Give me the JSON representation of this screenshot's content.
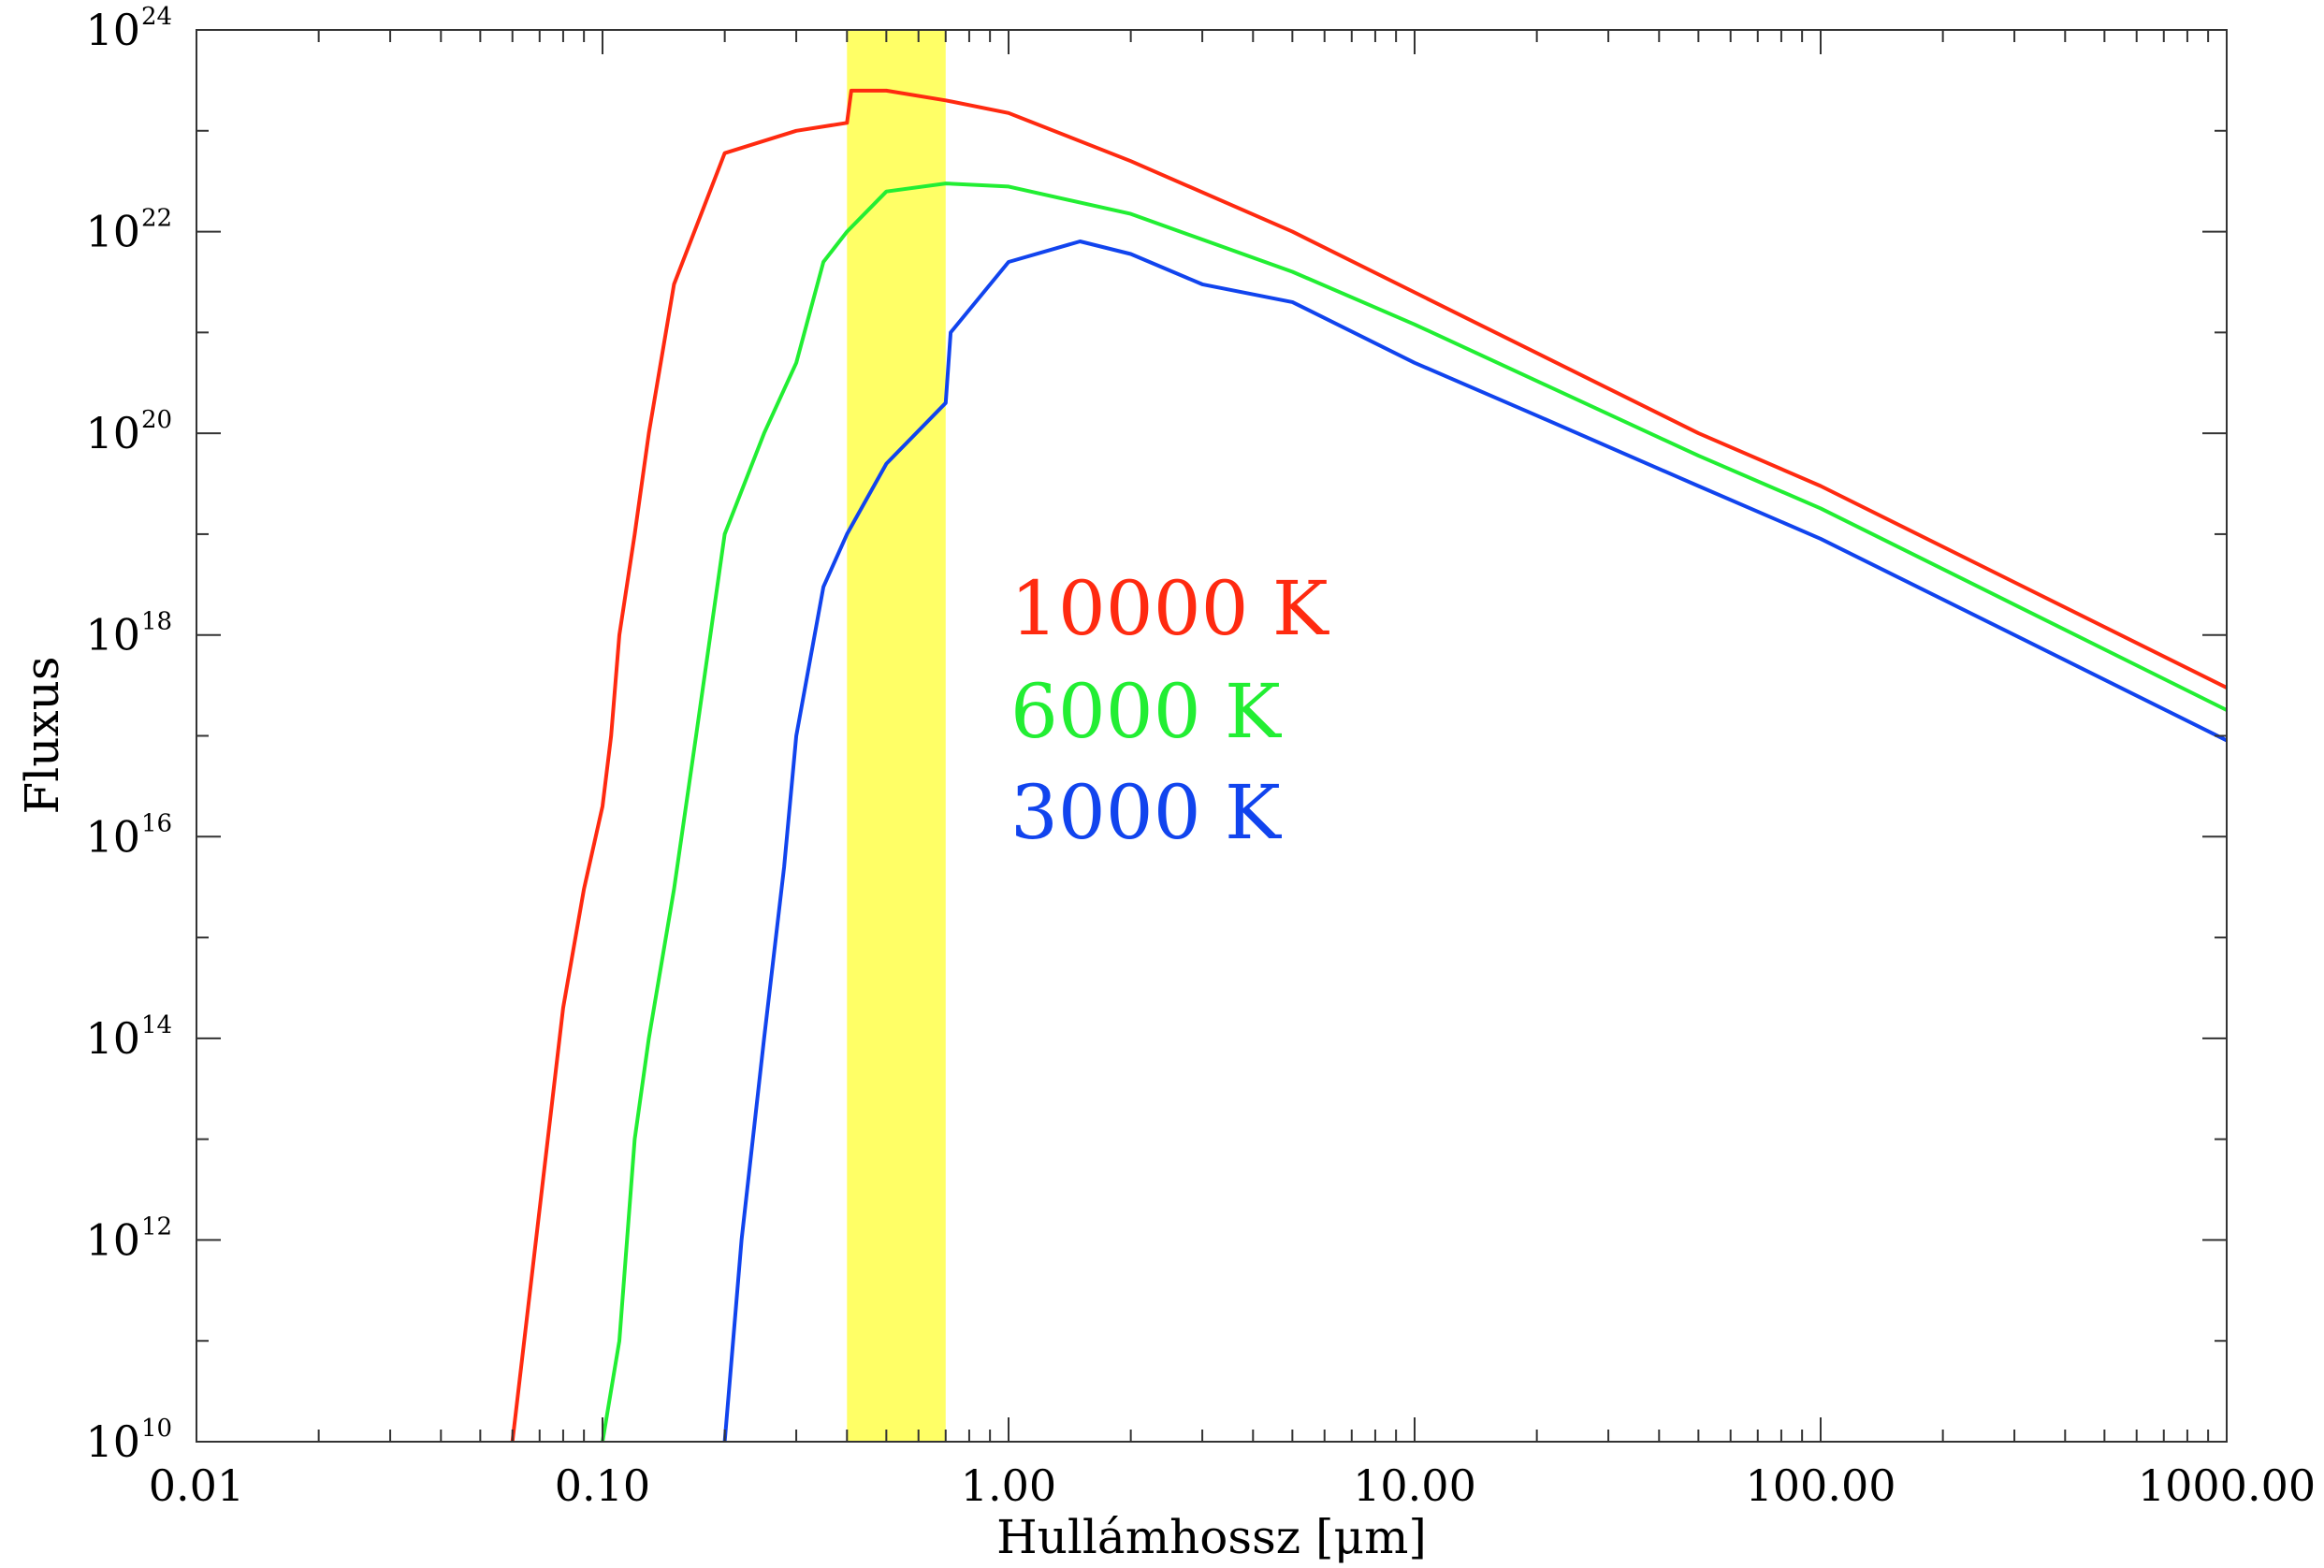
{
  "chart_data": {
    "type": "line",
    "title": "",
    "xlabel": "Hullámhossz [μm]",
    "ylabel": "Fluxus",
    "xscale": "log",
    "yscale": "log",
    "xlim": [
      0.01,
      1000
    ],
    "ylim": [
      10000000000.0,
      1e+24
    ],
    "x_tick_labels": [
      "0.01",
      "0.10",
      "1.00",
      "10.00",
      "100.00",
      "1000.00"
    ],
    "y_tick_labels": [
      {
        "base": "10",
        "exp": "10"
      },
      {
        "base": "10",
        "exp": "12"
      },
      {
        "base": "10",
        "exp": "14"
      },
      {
        "base": "10",
        "exp": "16"
      },
      {
        "base": "10",
        "exp": "18"
      },
      {
        "base": "10",
        "exp": "20"
      },
      {
        "base": "10",
        "exp": "22"
      },
      {
        "base": "10",
        "exp": "24"
      }
    ],
    "highlight_band": {
      "x_range": [
        0.4,
        0.7
      ],
      "color": "#ffff33"
    },
    "legend_placement": "center",
    "series": [
      {
        "name": "10000 K",
        "color": "#ff2a10",
        "points": [
          [
            0.06,
            10000000000.0
          ],
          [
            0.08,
            200000000000000.0
          ],
          [
            0.09,
            3000000000000000.0
          ],
          [
            0.1,
            2e+16
          ],
          [
            0.105,
            1e+17
          ],
          [
            0.11,
            1e+18
          ],
          [
            0.12,
            1e+19
          ],
          [
            0.13,
            1e+20
          ],
          [
            0.15,
            3e+21
          ],
          [
            0.2,
            6e+22
          ],
          [
            0.3,
            1e+23
          ],
          [
            0.4,
            1.2e+23
          ],
          [
            0.41,
            2.5e+23
          ],
          [
            0.5,
            2.5e+23
          ],
          [
            0.7,
            2e+23
          ],
          [
            1.0,
            1.5e+23
          ],
          [
            2.0,
            5e+22
          ],
          [
            5.0,
            1e+22
          ],
          [
            10,
            2.5e+21
          ],
          [
            50,
            1e+20
          ],
          [
            100,
            3e+19
          ],
          [
            1000,
            3e+17
          ]
        ]
      },
      {
        "name": "6000 K",
        "color": "#22ee33",
        "points": [
          [
            0.1,
            10000000000.0
          ],
          [
            0.11,
            100000000000.0
          ],
          [
            0.12,
            10000000000000.0
          ],
          [
            0.13,
            100000000000000.0
          ],
          [
            0.15,
            3000000000000000.0
          ],
          [
            0.17,
            1e+17
          ],
          [
            0.2,
            1e+19
          ],
          [
            0.25,
            1e+20
          ],
          [
            0.3,
            5e+20
          ],
          [
            0.35,
            5e+21
          ],
          [
            0.4,
            1e+22
          ],
          [
            0.5,
            2.5e+22
          ],
          [
            0.7,
            3e+22
          ],
          [
            1.0,
            2.8e+22
          ],
          [
            2.0,
            1.5e+22
          ],
          [
            5.0,
            4e+21
          ],
          [
            10,
            1.2e+21
          ],
          [
            50,
            6e+19
          ],
          [
            100,
            1.8e+19
          ],
          [
            1000,
            1.8e+17
          ]
        ]
      },
      {
        "name": "3000 K",
        "color": "#1144ee",
        "points": [
          [
            0.2,
            10000000000.0
          ],
          [
            0.22,
            1000000000000.0
          ],
          [
            0.25,
            100000000000000.0
          ],
          [
            0.28,
            5000000000000000.0
          ],
          [
            0.3,
            1e+17
          ],
          [
            0.35,
            3e+18
          ],
          [
            0.4,
            1e+19
          ],
          [
            0.5,
            5e+19
          ],
          [
            0.7,
            2e+20
          ],
          [
            0.72,
            1e+21
          ],
          [
            1.0,
            5e+21
          ],
          [
            1.5,
            8e+21
          ],
          [
            2.0,
            6e+21
          ],
          [
            3.0,
            3e+21
          ],
          [
            5.0,
            2e+21
          ],
          [
            10,
            5e+20
          ],
          [
            20,
            1.5e+20
          ],
          [
            50,
            3e+19
          ],
          [
            100,
            9e+18
          ],
          [
            1000,
            9e+16
          ]
        ]
      }
    ]
  }
}
